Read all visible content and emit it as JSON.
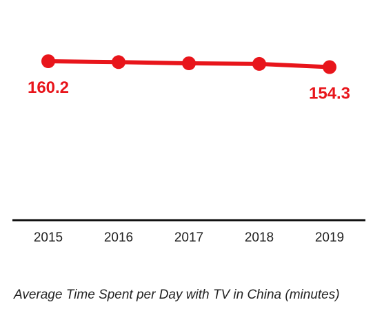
{
  "chart_data": {
    "type": "line",
    "title": "Average Time Spent per Day with TV in China (minutes)",
    "xlabel": "",
    "ylabel": "",
    "categories": [
      "2015",
      "2016",
      "2017",
      "2018",
      "2019"
    ],
    "series": [
      {
        "values": [
          160.2,
          159.3,
          158.1,
          157.5,
          154.3
        ]
      }
    ],
    "data_labels": [
      {
        "index": 0,
        "text": "160.2"
      },
      {
        "index": 4,
        "text": "154.3"
      }
    ],
    "ylim": [
      0,
      200
    ],
    "grid": false,
    "legend": "none",
    "colors": {
      "series": "#e8151b",
      "label": "#e8151b",
      "axis": "#111111",
      "tick_text": "#222222"
    }
  }
}
